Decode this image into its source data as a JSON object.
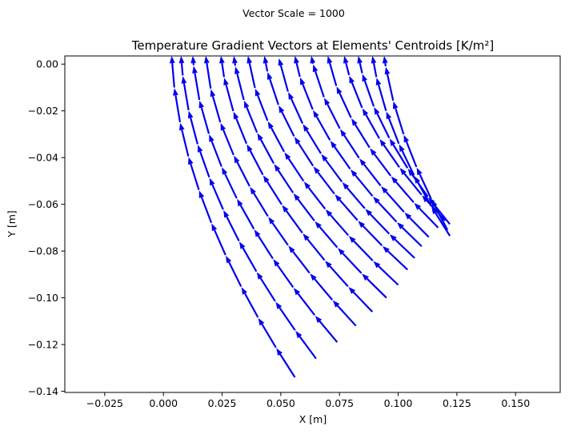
{
  "chart_data": {
    "type": "quiver",
    "suptitle": "Vector Scale = 1000",
    "title": "Temperature Gradient Vectors at Elements' Centroids [K/m²]",
    "xlabel": "X [m]",
    "ylabel": "Y [m]",
    "xlim": [
      -0.042,
      0.169
    ],
    "ylim": [
      -0.1405,
      0.0035
    ],
    "xticks": [
      -0.025,
      0.0,
      0.025,
      0.05,
      0.075,
      0.1,
      0.125,
      0.15
    ],
    "xtick_labels": [
      "−0.025",
      "0.000",
      "0.025",
      "0.050",
      "0.075",
      "0.100",
      "0.125",
      "0.150"
    ],
    "yticks": [
      0.0,
      -0.02,
      -0.04,
      -0.06,
      -0.08,
      -0.1,
      -0.12,
      -0.14
    ],
    "ytick_labels": [
      "0.00",
      "−0.02",
      "−0.04",
      "−0.06",
      "−0.08",
      "−0.10",
      "−0.12",
      "−0.14"
    ],
    "vector_color": "#0000ee",
    "streamlines": [
      {
        "start": [
          0.056,
          -0.134
        ],
        "top": [
          0.0035,
          0.0035
        ],
        "curve": 0.35
      },
      {
        "start": [
          0.065,
          -0.126
        ],
        "top": [
          0.0075,
          0.0035
        ],
        "curve": 0.38
      },
      {
        "start": [
          0.074,
          -0.119
        ],
        "top": [
          0.0125,
          0.0035
        ],
        "curve": 0.42
      },
      {
        "start": [
          0.082,
          -0.112
        ],
        "top": [
          0.018,
          0.0035
        ],
        "curve": 0.46
      },
      {
        "start": [
          0.089,
          -0.106
        ],
        "top": [
          0.0245,
          0.0035
        ],
        "curve": 0.5
      },
      {
        "start": [
          0.095,
          -0.1
        ],
        "top": [
          0.03,
          0.0035
        ],
        "curve": 0.55
      },
      {
        "start": [
          0.1,
          -0.0945
        ],
        "top": [
          0.036,
          0.0035
        ],
        "curve": 0.6
      },
      {
        "start": [
          0.104,
          -0.088
        ],
        "top": [
          0.043,
          0.0035
        ],
        "curve": 0.66
      },
      {
        "start": [
          0.107,
          -0.083
        ],
        "top": [
          0.049,
          0.0035
        ],
        "curve": 0.72
      },
      {
        "start": [
          0.11,
          -0.078
        ],
        "top": [
          0.056,
          0.0035
        ],
        "curve": 0.78
      },
      {
        "start": [
          0.113,
          -0.074
        ],
        "top": [
          0.063,
          0.0035
        ],
        "curve": 0.84
      },
      {
        "start": [
          0.117,
          -0.07
        ],
        "top": [
          0.07,
          0.0035
        ],
        "curve": 0.9
      },
      {
        "start": [
          0.12,
          -0.067
        ],
        "top": [
          0.077,
          0.0035
        ],
        "curve": 0.95
      },
      {
        "start": [
          0.122,
          -0.0685
        ],
        "top": [
          0.083,
          0.0035
        ],
        "curve": 1.0
      },
      {
        "start": [
          0.122,
          -0.0735
        ],
        "top": [
          0.089,
          0.0035
        ],
        "curve": 1.05
      },
      {
        "start": [
          0.121,
          -0.071
        ],
        "top": [
          0.094,
          0.0035
        ],
        "curve": 1.1
      }
    ]
  }
}
